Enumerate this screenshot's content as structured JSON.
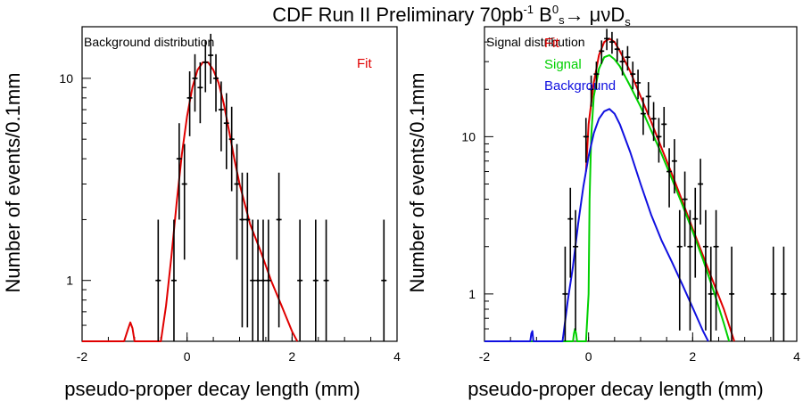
{
  "title": {
    "prefix": "CDF Run II Preliminary 70pb",
    "sup1": "-1",
    "b": " B",
    "sup2": "0",
    "sub": "s",
    "decay": "→  μνD",
    "sub2": "s"
  },
  "chart_data": [
    {
      "type": "scatter",
      "panel": "left",
      "yscale": "log",
      "title": "Background distribution",
      "xlabel": "pseudo-proper decay length (mm)",
      "ylabel": "Number of events/0.1mm",
      "xlim": [
        -2,
        4
      ],
      "ylim": [
        0.5,
        18
      ],
      "xticks": [
        -2,
        0,
        2,
        4
      ],
      "xtick_labels": [
        "-2",
        "0",
        "2",
        "4"
      ],
      "yticks": [
        1,
        10
      ],
      "ytick_labels": [
        "1",
        "10"
      ],
      "legend": [
        {
          "label": "Fit",
          "color": "#e00000"
        }
      ],
      "points": [
        {
          "x": -0.55,
          "y": 1
        },
        {
          "x": -0.25,
          "y": 1
        },
        {
          "x": -0.15,
          "y": 4
        },
        {
          "x": -0.05,
          "y": 3
        },
        {
          "x": 0.05,
          "y": 8
        },
        {
          "x": 0.15,
          "y": 10
        },
        {
          "x": 0.25,
          "y": 9
        },
        {
          "x": 0.35,
          "y": 12
        },
        {
          "x": 0.45,
          "y": 13
        },
        {
          "x": 0.55,
          "y": 10
        },
        {
          "x": 0.65,
          "y": 7
        },
        {
          "x": 0.75,
          "y": 6
        },
        {
          "x": 0.85,
          "y": 5
        },
        {
          "x": 0.95,
          "y": 3
        },
        {
          "x": 1.05,
          "y": 2
        },
        {
          "x": 1.15,
          "y": 2
        },
        {
          "x": 1.25,
          "y": 1
        },
        {
          "x": 1.35,
          "y": 1
        },
        {
          "x": 1.45,
          "y": 1
        },
        {
          "x": 1.55,
          "y": 1
        },
        {
          "x": 1.75,
          "y": 2
        },
        {
          "x": 2.15,
          "y": 1
        },
        {
          "x": 2.45,
          "y": 1
        },
        {
          "x": 2.65,
          "y": 1
        },
        {
          "x": 3.75,
          "y": 1
        }
      ],
      "series": [
        {
          "name": "Fit",
          "color": "#e00000",
          "x": [
            -2,
            -1.2,
            -1.12,
            -1.08,
            -1.04,
            -1.0,
            -0.5,
            -0.4,
            -0.3,
            -0.2,
            -0.1,
            0.0,
            0.1,
            0.2,
            0.3,
            0.4,
            0.5,
            0.6,
            0.7,
            0.8,
            0.9,
            1.0,
            1.2,
            1.4,
            1.6,
            1.8,
            2.0,
            2.1
          ],
          "y": [
            0.5,
            0.5,
            0.58,
            0.62,
            0.58,
            0.5,
            0.5,
            0.75,
            1.3,
            2.4,
            4.2,
            6.5,
            9,
            11,
            12,
            12,
            11,
            9.5,
            7.5,
            5.5,
            4.0,
            3.0,
            1.9,
            1.4,
            1.0,
            0.75,
            0.56,
            0.5
          ]
        }
      ]
    },
    {
      "type": "scatter",
      "panel": "right",
      "yscale": "log",
      "title": "Signal distribution",
      "xlabel": "pseudo-proper decay length (mm)",
      "ylabel": "Number of events/0.1mm",
      "xlim": [
        -2,
        4
      ],
      "ylim": [
        0.5,
        50
      ],
      "xticks": [
        -2,
        0,
        2,
        4
      ],
      "xtick_labels": [
        "-2",
        "0",
        "2",
        "4"
      ],
      "yticks": [
        1,
        10
      ],
      "ytick_labels": [
        "1",
        "10"
      ],
      "legend": [
        {
          "label": "Fit",
          "color": "#e00000"
        },
        {
          "label": "Signal",
          "color": "#00d000"
        },
        {
          "label": "Background",
          "color": "#1010e0"
        }
      ],
      "points": [
        {
          "x": -0.45,
          "y": 1
        },
        {
          "x": -0.35,
          "y": 3
        },
        {
          "x": -0.25,
          "y": 2
        },
        {
          "x": -0.05,
          "y": 10
        },
        {
          "x": 0.05,
          "y": 20
        },
        {
          "x": 0.15,
          "y": 25
        },
        {
          "x": 0.25,
          "y": 35
        },
        {
          "x": 0.35,
          "y": 42
        },
        {
          "x": 0.45,
          "y": 40
        },
        {
          "x": 0.55,
          "y": 36
        },
        {
          "x": 0.65,
          "y": 30
        },
        {
          "x": 0.75,
          "y": 32
        },
        {
          "x": 0.85,
          "y": 25
        },
        {
          "x": 0.95,
          "y": 22
        },
        {
          "x": 1.05,
          "y": 14
        },
        {
          "x": 1.15,
          "y": 18
        },
        {
          "x": 1.25,
          "y": 13
        },
        {
          "x": 1.35,
          "y": 10
        },
        {
          "x": 1.45,
          "y": 12
        },
        {
          "x": 1.55,
          "y": 6
        },
        {
          "x": 1.65,
          "y": 7
        },
        {
          "x": 1.75,
          "y": 2
        },
        {
          "x": 1.85,
          "y": 4
        },
        {
          "x": 1.95,
          "y": 2
        },
        {
          "x": 2.05,
          "y": 3
        },
        {
          "x": 2.15,
          "y": 5
        },
        {
          "x": 2.25,
          "y": 2
        },
        {
          "x": 2.35,
          "y": 1
        },
        {
          "x": 2.45,
          "y": 2
        },
        {
          "x": 2.75,
          "y": 1
        },
        {
          "x": 3.55,
          "y": 1
        },
        {
          "x": 3.75,
          "y": 1
        }
      ],
      "series": [
        {
          "name": "Fit",
          "color": "#e00000",
          "x": [
            -0.05,
            0.0,
            0.1,
            0.2,
            0.3,
            0.4,
            0.5,
            0.6,
            0.8,
            1.0,
            1.2,
            1.4,
            1.6,
            1.8,
            2.0,
            2.2,
            2.4,
            2.6,
            2.8
          ],
          "y": [
            6,
            12,
            22,
            33,
            40,
            42,
            40,
            35,
            26,
            18,
            12.5,
            8.5,
            5.8,
            3.9,
            2.6,
            1.75,
            1.18,
            0.8,
            0.5
          ]
        },
        {
          "name": "Signal",
          "color": "#00d000",
          "x": [
            -2,
            -0.3,
            -0.28,
            -0.26,
            -0.24,
            -0.22,
            -0.05,
            0.0,
            0.02,
            0.05,
            0.1,
            0.2,
            0.3,
            0.4,
            0.5,
            0.6,
            0.8,
            1.0,
            1.2,
            1.4,
            1.6,
            1.8,
            2.0,
            2.2,
            2.4,
            2.6,
            2.7
          ],
          "y": [
            0.5,
            0.5,
            0.56,
            0.6,
            0.56,
            0.5,
            0.5,
            1.0,
            4,
            10,
            18,
            27,
            32,
            33,
            31,
            28,
            21,
            15.5,
            11,
            7.8,
            5.4,
            3.7,
            2.5,
            1.65,
            1.05,
            0.65,
            0.5
          ]
        },
        {
          "name": "Background",
          "color": "#1010e0",
          "x": [
            -2,
            -1.12,
            -1.1,
            -1.08,
            -1.06,
            -0.5,
            -0.4,
            -0.3,
            -0.2,
            -0.1,
            0.0,
            0.1,
            0.2,
            0.3,
            0.4,
            0.5,
            0.6,
            0.8,
            1.0,
            1.2,
            1.4,
            1.6,
            1.8,
            2.0,
            2.2,
            2.3
          ],
          "y": [
            0.5,
            0.5,
            0.56,
            0.58,
            0.5,
            0.5,
            0.9,
            1.5,
            2.8,
            4.8,
            7.5,
            10.5,
            13,
            14.5,
            15,
            14,
            12,
            8,
            5,
            3.2,
            2.2,
            1.6,
            1.15,
            0.82,
            0.58,
            0.5
          ]
        }
      ]
    }
  ]
}
